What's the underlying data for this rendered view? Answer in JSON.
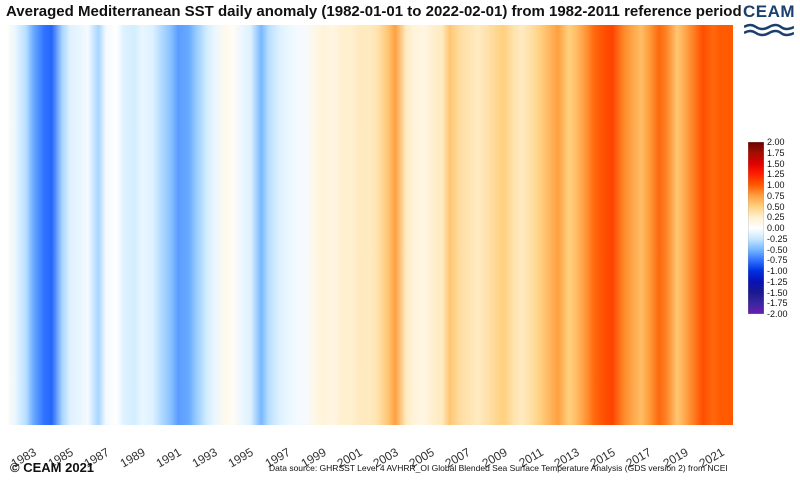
{
  "header": {
    "title": "Averaged Mediterranean SST daily anomaly (1982-01-01 to 2022-02-01) from 1982-2011 reference period",
    "logo_text": "CEAM"
  },
  "footer": {
    "copyright": "CEAM 2021",
    "source": "Data source: GHRSST Level 4 AVHRR_OI Global Blended Sea Surface Temperature Analysis (GDS version 2) from NCEI"
  },
  "chart_data": {
    "type": "heatmap",
    "title": "Averaged Mediterranean SST daily anomaly (1982-01-01 to 2022-02-01) from 1982-2011 reference period",
    "xlabel": "",
    "ylabel": "",
    "x_range": [
      "1982-01-01",
      "2022-02-01"
    ],
    "x_ticks": [
      "1983",
      "1985",
      "1987",
      "1989",
      "1991",
      "1993",
      "1995",
      "1997",
      "1999",
      "2001",
      "2003",
      "2005",
      "2007",
      "2009",
      "2011",
      "2013",
      "2015",
      "2017",
      "2019",
      "2021"
    ],
    "colorbar": {
      "range": [
        -2.0,
        2.0
      ],
      "ticks": [
        "2.00",
        "1.75",
        "1.50",
        "1.25",
        "1.00",
        "0.75",
        "0.50",
        "0.25",
        "0.00",
        "-0.25",
        "-0.50",
        "-0.75",
        "-1.00",
        "-1.25",
        "-1.50",
        "-1.75",
        "-2.00"
      ],
      "colors": [
        {
          "v": -2.0,
          "c": "#6a1fb0"
        },
        {
          "v": -1.75,
          "c": "#3a26a0"
        },
        {
          "v": -1.5,
          "c": "#1a1a8f"
        },
        {
          "v": -1.25,
          "c": "#0a10b4"
        },
        {
          "v": -1.0,
          "c": "#0030e0"
        },
        {
          "v": -0.75,
          "c": "#2f73ff"
        },
        {
          "v": -0.5,
          "c": "#78b8ff"
        },
        {
          "v": -0.25,
          "c": "#c8e8ff"
        },
        {
          "v": 0.0,
          "c": "#ffffff"
        },
        {
          "v": 0.25,
          "c": "#fff0d0"
        },
        {
          "v": 0.5,
          "c": "#ffd080"
        },
        {
          "v": 0.75,
          "c": "#ffa040"
        },
        {
          "v": 1.0,
          "c": "#ff5a00"
        },
        {
          "v": 1.25,
          "c": "#ff2000"
        },
        {
          "v": 1.5,
          "c": "#e00000"
        },
        {
          "v": 1.75,
          "c": "#a01000"
        },
        {
          "v": 2.0,
          "c": "#6a0000"
        }
      ]
    },
    "anomaly_series": [
      {
        "date": "1982-01",
        "value": 0.05
      },
      {
        "date": "1982-06",
        "value": -0.1
      },
      {
        "date": "1983-01",
        "value": -0.3
      },
      {
        "date": "1983-06",
        "value": -0.55
      },
      {
        "date": "1984-01",
        "value": -0.75
      },
      {
        "date": "1984-06",
        "value": -0.8
      },
      {
        "date": "1985-01",
        "value": -0.35
      },
      {
        "date": "1985-06",
        "value": -0.15
      },
      {
        "date": "1986-01",
        "value": -0.1
      },
      {
        "date": "1986-06",
        "value": -0.05
      },
      {
        "date": "1987-01",
        "value": -0.35
      },
      {
        "date": "1987-06",
        "value": -0.05
      },
      {
        "date": "1988-01",
        "value": 0.0
      },
      {
        "date": "1988-06",
        "value": -0.15
      },
      {
        "date": "1989-01",
        "value": -0.2
      },
      {
        "date": "1989-06",
        "value": -0.1
      },
      {
        "date": "1990-01",
        "value": -0.15
      },
      {
        "date": "1990-06",
        "value": -0.3
      },
      {
        "date": "1991-01",
        "value": -0.45
      },
      {
        "date": "1991-06",
        "value": -0.6
      },
      {
        "date": "1992-01",
        "value": -0.55
      },
      {
        "date": "1992-06",
        "value": -0.4
      },
      {
        "date": "1993-01",
        "value": -0.2
      },
      {
        "date": "1993-06",
        "value": -0.1
      },
      {
        "date": "1994-01",
        "value": 0.1
      },
      {
        "date": "1994-06",
        "value": 0.05
      },
      {
        "date": "1995-01",
        "value": -0.1
      },
      {
        "date": "1995-06",
        "value": -0.15
      },
      {
        "date": "1996-01",
        "value": -0.5
      },
      {
        "date": "1996-06",
        "value": -0.3
      },
      {
        "date": "1997-01",
        "value": -0.15
      },
      {
        "date": "1997-06",
        "value": -0.1
      },
      {
        "date": "1998-01",
        "value": -0.05
      },
      {
        "date": "1998-06",
        "value": -0.05
      },
      {
        "date": "1999-01",
        "value": 0.15
      },
      {
        "date": "1999-06",
        "value": 0.2
      },
      {
        "date": "2000-01",
        "value": 0.15
      },
      {
        "date": "2000-06",
        "value": 0.25
      },
      {
        "date": "2001-01",
        "value": 0.25
      },
      {
        "date": "2001-06",
        "value": 0.3
      },
      {
        "date": "2002-01",
        "value": 0.3
      },
      {
        "date": "2002-06",
        "value": 0.35
      },
      {
        "date": "2003-01",
        "value": 0.55
      },
      {
        "date": "2003-06",
        "value": 0.75
      },
      {
        "date": "2004-01",
        "value": 0.3
      },
      {
        "date": "2004-06",
        "value": 0.2
      },
      {
        "date": "2005-01",
        "value": 0.15
      },
      {
        "date": "2005-06",
        "value": 0.25
      },
      {
        "date": "2006-01",
        "value": 0.3
      },
      {
        "date": "2006-06",
        "value": 0.55
      },
      {
        "date": "2007-01",
        "value": 0.4
      },
      {
        "date": "2007-06",
        "value": 0.35
      },
      {
        "date": "2008-01",
        "value": 0.3
      },
      {
        "date": "2008-06",
        "value": 0.35
      },
      {
        "date": "2009-01",
        "value": 0.45
      },
      {
        "date": "2009-06",
        "value": 0.5
      },
      {
        "date": "2010-01",
        "value": 0.35
      },
      {
        "date": "2010-06",
        "value": 0.3
      },
      {
        "date": "2011-01",
        "value": 0.4
      },
      {
        "date": "2011-06",
        "value": 0.5
      },
      {
        "date": "2012-01",
        "value": 0.65
      },
      {
        "date": "2012-06",
        "value": 0.75
      },
      {
        "date": "2013-01",
        "value": 0.5
      },
      {
        "date": "2013-06",
        "value": 0.6
      },
      {
        "date": "2014-01",
        "value": 0.8
      },
      {
        "date": "2014-06",
        "value": 0.95
      },
      {
        "date": "2015-01",
        "value": 1.05
      },
      {
        "date": "2015-06",
        "value": 1.1
      },
      {
        "date": "2016-01",
        "value": 0.85
      },
      {
        "date": "2016-06",
        "value": 0.75
      },
      {
        "date": "2017-01",
        "value": 0.6
      },
      {
        "date": "2017-06",
        "value": 0.75
      },
      {
        "date": "2018-01",
        "value": 0.95
      },
      {
        "date": "2018-06",
        "value": 0.85
      },
      {
        "date": "2019-01",
        "value": 0.55
      },
      {
        "date": "2019-06",
        "value": 0.7
      },
      {
        "date": "2020-01",
        "value": 0.9
      },
      {
        "date": "2020-06",
        "value": 1.05
      },
      {
        "date": "2021-01",
        "value": 0.95
      },
      {
        "date": "2021-06",
        "value": 1.0
      },
      {
        "date": "2022-01",
        "value": 1.0
      }
    ]
  }
}
